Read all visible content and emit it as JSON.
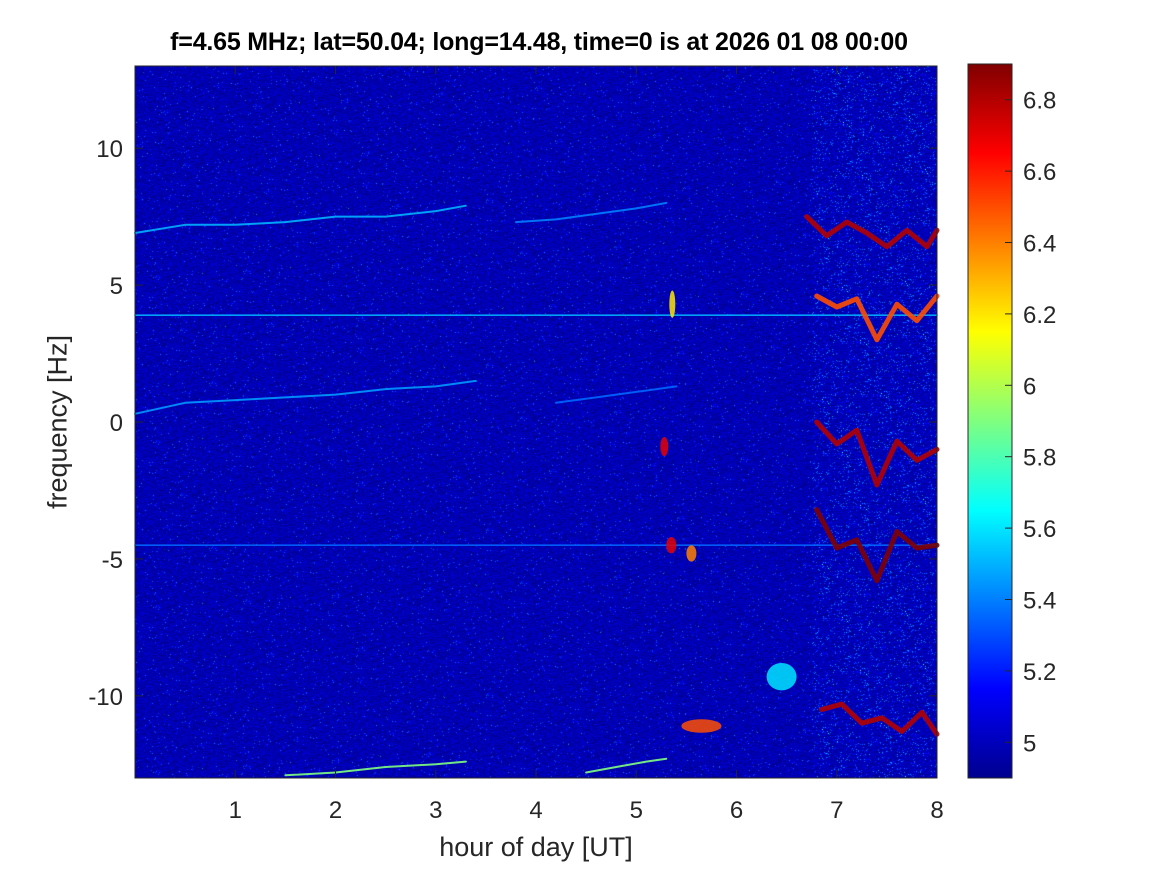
{
  "chart_data": {
    "type": "heatmap",
    "title": "f=4.65 MHz;  lat=50.04; long=14.48, time=0 is at 2026 01 08 00:00",
    "xlabel": "hour of day [UT]",
    "ylabel": "frequency [Hz]",
    "xlim": [
      0,
      8
    ],
    "ylim": [
      -13,
      13
    ],
    "xticks": [
      1,
      2,
      3,
      4,
      5,
      6,
      7,
      8
    ],
    "yticks": [
      -10,
      -5,
      0,
      5,
      10
    ],
    "colorbar": {
      "colormap": "jet",
      "clim": [
        4.9,
        6.9
      ],
      "ticks": [
        5,
        5.2,
        5.4,
        5.6,
        5.8,
        6,
        6.2,
        6.4,
        6.6,
        6.8
      ]
    },
    "background_level": 5.0,
    "features": [
      {
        "kind": "line",
        "x": [
          0,
          8
        ],
        "y": [
          3.9,
          3.9
        ],
        "level": 5.5
      },
      {
        "kind": "line",
        "x": [
          0,
          8
        ],
        "y": [
          -4.5,
          -4.5
        ],
        "level": 5.35
      },
      {
        "kind": "trace",
        "x": [
          0,
          0.5,
          1,
          1.5,
          2,
          2.5,
          3,
          3.3
        ],
        "y": [
          6.9,
          7.2,
          7.2,
          7.3,
          7.5,
          7.5,
          7.7,
          7.9
        ],
        "level": 5.5
      },
      {
        "kind": "trace",
        "x": [
          3.8,
          4.2,
          4.6,
          5,
          5.3
        ],
        "y": [
          7.3,
          7.4,
          7.6,
          7.8,
          8.0
        ],
        "level": 5.4
      },
      {
        "kind": "trace",
        "x": [
          0,
          0.5,
          1,
          1.5,
          2,
          2.5,
          3,
          3.4
        ],
        "y": [
          0.3,
          0.7,
          0.8,
          0.9,
          1.0,
          1.2,
          1.3,
          1.5
        ],
        "level": 5.45
      },
      {
        "kind": "trace",
        "x": [
          4.2,
          4.6,
          5,
          5.4
        ],
        "y": [
          0.7,
          0.9,
          1.1,
          1.3
        ],
        "level": 5.35
      },
      {
        "kind": "trace",
        "x": [
          1.5,
          2,
          2.5,
          3,
          3.3
        ],
        "y": [
          -12.9,
          -12.8,
          -12.6,
          -12.5,
          -12.4
        ],
        "level": 5.9
      },
      {
        "kind": "trace",
        "x": [
          4.5,
          4.8,
          5.1,
          5.3
        ],
        "y": [
          -12.8,
          -12.6,
          -12.4,
          -12.3
        ],
        "level": 5.9
      },
      {
        "kind": "blob",
        "x": 5.28,
        "y": -0.9,
        "sx": 0.04,
        "sy": 0.35,
        "level": 6.7
      },
      {
        "kind": "blob",
        "x": 5.35,
        "y": -4.5,
        "sx": 0.05,
        "sy": 0.3,
        "level": 6.7
      },
      {
        "kind": "blob",
        "x": 5.55,
        "y": -4.8,
        "sx": 0.05,
        "sy": 0.3,
        "level": 6.4
      },
      {
        "kind": "blob",
        "x": 5.65,
        "y": -11.1,
        "sx": 0.2,
        "sy": 0.25,
        "level": 6.5
      },
      {
        "kind": "blob",
        "x": 5.36,
        "y": 4.3,
        "sx": 0.03,
        "sy": 0.5,
        "level": 6.2
      },
      {
        "kind": "trace",
        "x": [
          6.7,
          6.9,
          7.1,
          7.3,
          7.5,
          7.7,
          7.9,
          8.0
        ],
        "y": [
          7.5,
          6.8,
          7.3,
          6.9,
          6.4,
          7.0,
          6.4,
          7.0
        ],
        "level": 6.8
      },
      {
        "kind": "trace",
        "x": [
          6.8,
          7.0,
          7.2,
          7.4,
          7.6,
          7.8,
          8.0
        ],
        "y": [
          4.6,
          4.2,
          4.5,
          3.0,
          4.3,
          3.7,
          4.6
        ],
        "level": 6.5
      },
      {
        "kind": "trace",
        "x": [
          6.8,
          7.0,
          7.2,
          7.4,
          7.6,
          7.8,
          8.0
        ],
        "y": [
          0.0,
          -0.8,
          -0.3,
          -2.3,
          -0.7,
          -1.4,
          -1.0
        ],
        "level": 6.8
      },
      {
        "kind": "trace",
        "x": [
          6.8,
          7.0,
          7.2,
          7.4,
          7.6,
          7.8,
          8.0
        ],
        "y": [
          -3.2,
          -4.6,
          -4.3,
          -5.8,
          -4.0,
          -4.6,
          -4.5
        ],
        "level": 6.9
      },
      {
        "kind": "trace",
        "x": [
          6.85,
          7.05,
          7.25,
          7.45,
          7.65,
          7.85,
          8.0
        ],
        "y": [
          -10.5,
          -10.3,
          -11.0,
          -10.8,
          -11.3,
          -10.6,
          -11.4
        ],
        "level": 6.8
      },
      {
        "kind": "blob",
        "x": 6.45,
        "y": -9.3,
        "sx": 0.15,
        "sy": 0.5,
        "level": 5.6
      }
    ]
  }
}
